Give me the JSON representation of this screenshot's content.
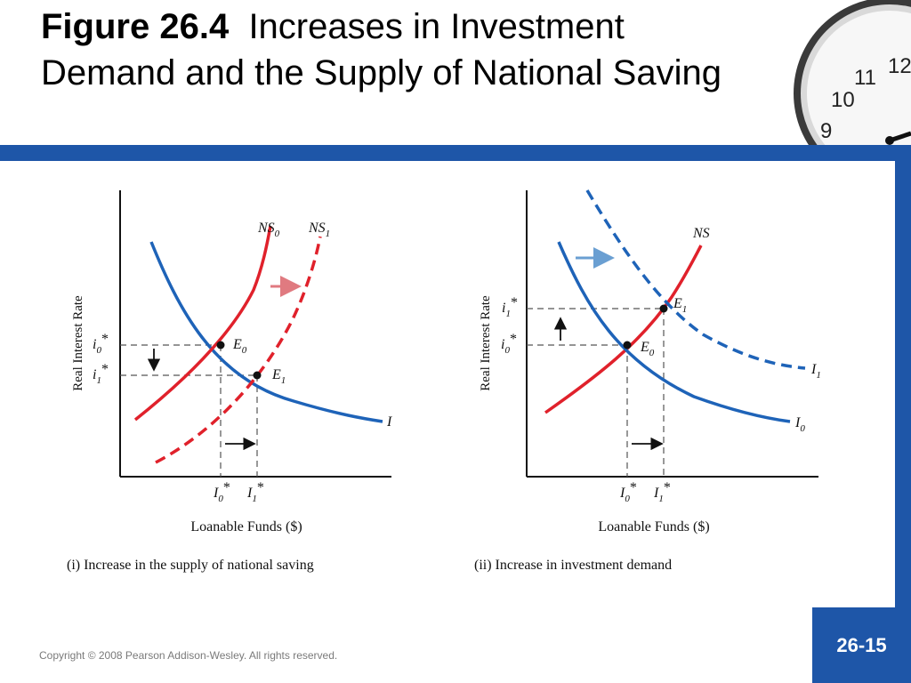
{
  "title": {
    "figure_number": "Figure 26.4",
    "text": "Increases in Investment Demand and the Supply of National Saving"
  },
  "panel_1": {
    "caption": "(i) Increase in the supply of national saving",
    "y_axis_label": "Real Interest Rate",
    "x_axis_label": "Loanable Funds ($)",
    "curve_ns0": "NS",
    "curve_ns0_sub": "0",
    "curve_ns1": "NS",
    "curve_ns1_sub": "1",
    "curve_i": "I",
    "eq_e0": "E",
    "eq_e0_sub": "0",
    "eq_e1": "E",
    "eq_e1_sub": "1",
    "rate_i0": "i",
    "rate_i0_sub": "0",
    "rate_i1": "i",
    "rate_i1_sub": "1",
    "qty_i0": "I",
    "qty_i0_sub": "0",
    "qty_i1": "I",
    "qty_i1_sub": "1",
    "star": "*"
  },
  "panel_2": {
    "caption": "(ii) Increase in investment demand",
    "y_axis_label": "Real Interest Rate",
    "x_axis_label": "Loanable Funds ($)",
    "curve_ns": "NS",
    "curve_i0": "I",
    "curve_i0_sub": "0",
    "curve_i1": "I",
    "curve_i1_sub": "1",
    "eq_e0": "E",
    "eq_e0_sub": "0",
    "eq_e1": "E",
    "eq_e1_sub": "1",
    "rate_i1": "i",
    "rate_i1_sub": "1",
    "rate_i0": "i",
    "rate_i0_sub": "0",
    "qty_i0": "I",
    "qty_i0_sub": "0",
    "qty_i1": "I",
    "qty_i1_sub": "1",
    "star": "*"
  },
  "clock": {
    "numbers": [
      "12",
      "11",
      "10",
      "9"
    ]
  },
  "footer": {
    "copyright": "Copyright © 2008 Pearson Addison-Wesley. All rights reserved.",
    "slide_number": "26-15"
  },
  "colors": {
    "blue_curve": "#1e63b8",
    "red_curve": "#e0212b",
    "red_arrow": "#e07a80",
    "blue_arrow": "#6a9fd2",
    "brand_band": "#1e56a8"
  }
}
